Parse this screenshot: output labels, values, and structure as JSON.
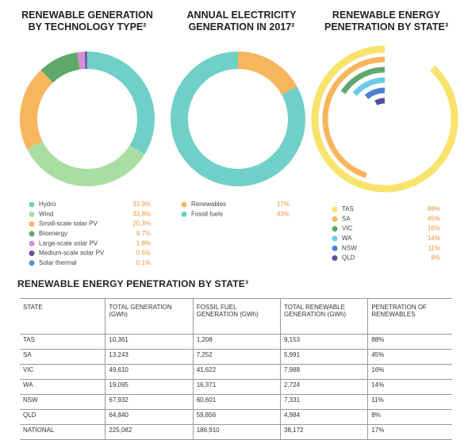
{
  "chart_data": [
    {
      "type": "donut",
      "title": "RENEWABLE GENERATION BY TECHNOLOGY TYPE²",
      "categories": [
        "Hydro",
        "Wind",
        "Small-scale solar PV",
        "Bioenergy",
        "Large-scale solar PV",
        "Medium-scale solar PV",
        "Solar thermal"
      ],
      "values": [
        33.9,
        33.8,
        20.3,
        9.7,
        1.8,
        0.5,
        0.1
      ],
      "value_labels": [
        "33.9%",
        "33.8%",
        "20.3%",
        "9.7%",
        "1.8%",
        "0.5%",
        "0.1%"
      ],
      "colors": [
        "#6fd0c8",
        "#a9dea3",
        "#f7b55c",
        "#5ea86c",
        "#d68fd2",
        "#6a4fa3",
        "#4b91d2"
      ]
    },
    {
      "type": "donut",
      "title": "ANNUAL ELECTRICITY GENERATION IN 2017²",
      "categories": [
        "Renewables",
        "Fossil fuels"
      ],
      "values": [
        17,
        83
      ],
      "value_labels": [
        "17%",
        "83%"
      ],
      "colors": [
        "#f7b55c",
        "#6fd0c8"
      ]
    },
    {
      "type": "radial-bar",
      "title": "RENEWABLE ENERGY PENETRATION BY STATE³",
      "categories": [
        "TAS",
        "SA",
        "VIC",
        "WA",
        "NSW",
        "QLD"
      ],
      "values": [
        88,
        45,
        16,
        14,
        11,
        8
      ],
      "value_labels": [
        "88%",
        "45%",
        "16%",
        "14%",
        "11%",
        "8%"
      ],
      "ylim": [
        0,
        100
      ],
      "colors": [
        "#f8e36c",
        "#f7b55c",
        "#5ea86c",
        "#6ccbe8",
        "#4a80d2",
        "#5a4b9c"
      ]
    }
  ],
  "table": {
    "title": "RENEWABLE ENERGY PENETRATION BY STATE³",
    "header": [
      "STATE",
      "TOTAL GENERATION (GWh)",
      "FOSSIL FUEL GENERATION (GWh)",
      "TOTAL RENEWABLE GENERATION (GWh)",
      "PENETRATION OF RENEWABLES"
    ],
    "rows": [
      [
        "TAS",
        "10,361",
        "1,208",
        "9,153",
        "88%"
      ],
      [
        "SA",
        "13,243",
        "7,252",
        "5,991",
        "45%"
      ],
      [
        "VIC",
        "49,610",
        "41,622",
        "7,988",
        "16%"
      ],
      [
        "WA",
        "19,095",
        "16,371",
        "2,724",
        "14%"
      ],
      [
        "NSW",
        "67,932",
        "60,601",
        "7,331",
        "11%"
      ],
      [
        "QLD",
        "64,840",
        "59,856",
        "4,984",
        "8%"
      ],
      [
        "NATIONAL",
        "225,082",
        "186,910",
        "38,172",
        "17%"
      ]
    ]
  }
}
